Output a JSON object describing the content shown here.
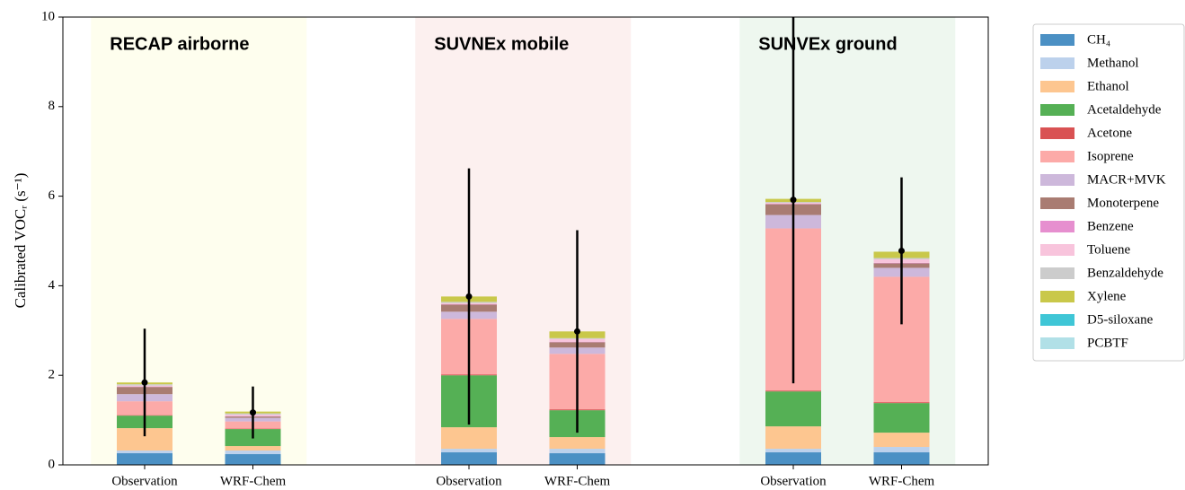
{
  "chart_data": {
    "type": "stacked_bar",
    "ylabel": "Calibrated VOCᵣ (s⁻¹)",
    "categories": [
      "Observation",
      "WRF-Chem",
      "Observation",
      "WRF-Chem",
      "Observation",
      "WRF-Chem"
    ],
    "ylim": [
      0,
      10
    ],
    "yticks": [
      0,
      2,
      4,
      6,
      8,
      10
    ],
    "groups": [
      {
        "text": "RECAP airborne",
        "color": "#fefeee"
      },
      {
        "text": "SUVNEx mobile",
        "color": "#fcf0ef"
      },
      {
        "text": "SUNVEx ground",
        "color": "#eef7ef"
      }
    ],
    "series": [
      {
        "name": "CH₄",
        "color": "#4b90c4",
        "values": [
          0.26,
          0.24,
          0.28,
          0.26,
          0.28,
          0.28
        ]
      },
      {
        "name": "Methanol",
        "color": "#bcd1ec",
        "values": [
          0.06,
          0.08,
          0.08,
          0.1,
          0.08,
          0.12
        ]
      },
      {
        "name": "Ethanol",
        "color": "#fdc690",
        "values": [
          0.5,
          0.1,
          0.48,
          0.26,
          0.5,
          0.32
        ]
      },
      {
        "name": "Acetaldehyde",
        "color": "#55b055",
        "values": [
          0.28,
          0.38,
          1.16,
          0.6,
          0.78,
          0.66
        ]
      },
      {
        "name": "Acetone",
        "color": "#d95253",
        "values": [
          0.01,
          0.01,
          0.02,
          0.02,
          0.02,
          0.02
        ]
      },
      {
        "name": "Isoprene",
        "color": "#fcaaa8",
        "values": [
          0.31,
          0.16,
          1.24,
          1.24,
          3.62,
          2.8
        ]
      },
      {
        "name": "MACR+MVK",
        "color": "#cdb8db",
        "values": [
          0.16,
          0.08,
          0.16,
          0.14,
          0.3,
          0.2
        ]
      },
      {
        "name": "Monoterpene",
        "color": "#a97c72",
        "values": [
          0.16,
          0.03,
          0.16,
          0.12,
          0.24,
          0.1
        ]
      },
      {
        "name": "Benzene",
        "color": "#e68fcf",
        "values": [
          0.01,
          0.01,
          0.01,
          0.01,
          0.01,
          0.01
        ]
      },
      {
        "name": "Toluene",
        "color": "#f8c4dc",
        "values": [
          0.02,
          0.03,
          0.02,
          0.06,
          0.02,
          0.08
        ]
      },
      {
        "name": "Benzaldehyde",
        "color": "#cccccc",
        "values": [
          0.03,
          0.03,
          0.03,
          0.02,
          0.02,
          0.03
        ]
      },
      {
        "name": "Xylene",
        "color": "#c9c84a",
        "values": [
          0.04,
          0.04,
          0.12,
          0.15,
          0.07,
          0.14
        ]
      },
      {
        "name": "D5-siloxane",
        "color": "#3fc6d6",
        "values": [
          0,
          0,
          0,
          0,
          0,
          0
        ]
      },
      {
        "name": "PCBTF",
        "color": "#b1e0e7",
        "values": [
          0,
          0,
          0,
          0,
          0,
          0
        ]
      }
    ],
    "error_bars": {
      "color": "#000000",
      "means": [
        1.84,
        1.17,
        3.76,
        2.98,
        5.92,
        4.78
      ],
      "errors": [
        1.2,
        0.58,
        2.86,
        2.26,
        4.1,
        1.64
      ]
    }
  }
}
